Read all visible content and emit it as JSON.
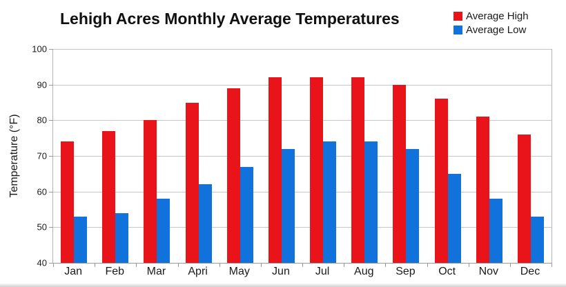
{
  "chart_data": {
    "type": "bar",
    "title": "Lehigh Acres Monthly Average Temperatures",
    "categories": [
      "Jan",
      "Feb",
      "Mar",
      "Apri",
      "May",
      "Jun",
      "Jul",
      "Aug",
      "Sep",
      "Oct",
      "Nov",
      "Dec"
    ],
    "series": [
      {
        "name": "Average High",
        "color": "#e8141a",
        "values": [
          74,
          77,
          80,
          85,
          89,
          92,
          92,
          92,
          90,
          86,
          81,
          76
        ]
      },
      {
        "name": "Average Low",
        "color": "#1272dc",
        "values": [
          53,
          54,
          58,
          62,
          67,
          72,
          74,
          74,
          72,
          65,
          58,
          53
        ]
      }
    ],
    "xlabel": "",
    "ylabel": "Temperature (°F)",
    "ylim": [
      40,
      100
    ],
    "yticks": [
      100,
      90,
      80,
      70,
      60,
      50,
      40
    ],
    "grid": true,
    "legend_position": "top-right"
  },
  "colors": {
    "bar_high": "#e8141a",
    "bar_low": "#1272dc",
    "gridline": "#c6c6c6",
    "axis": "#999999",
    "text": "#1a1a1a",
    "background": "#ffffff"
  }
}
